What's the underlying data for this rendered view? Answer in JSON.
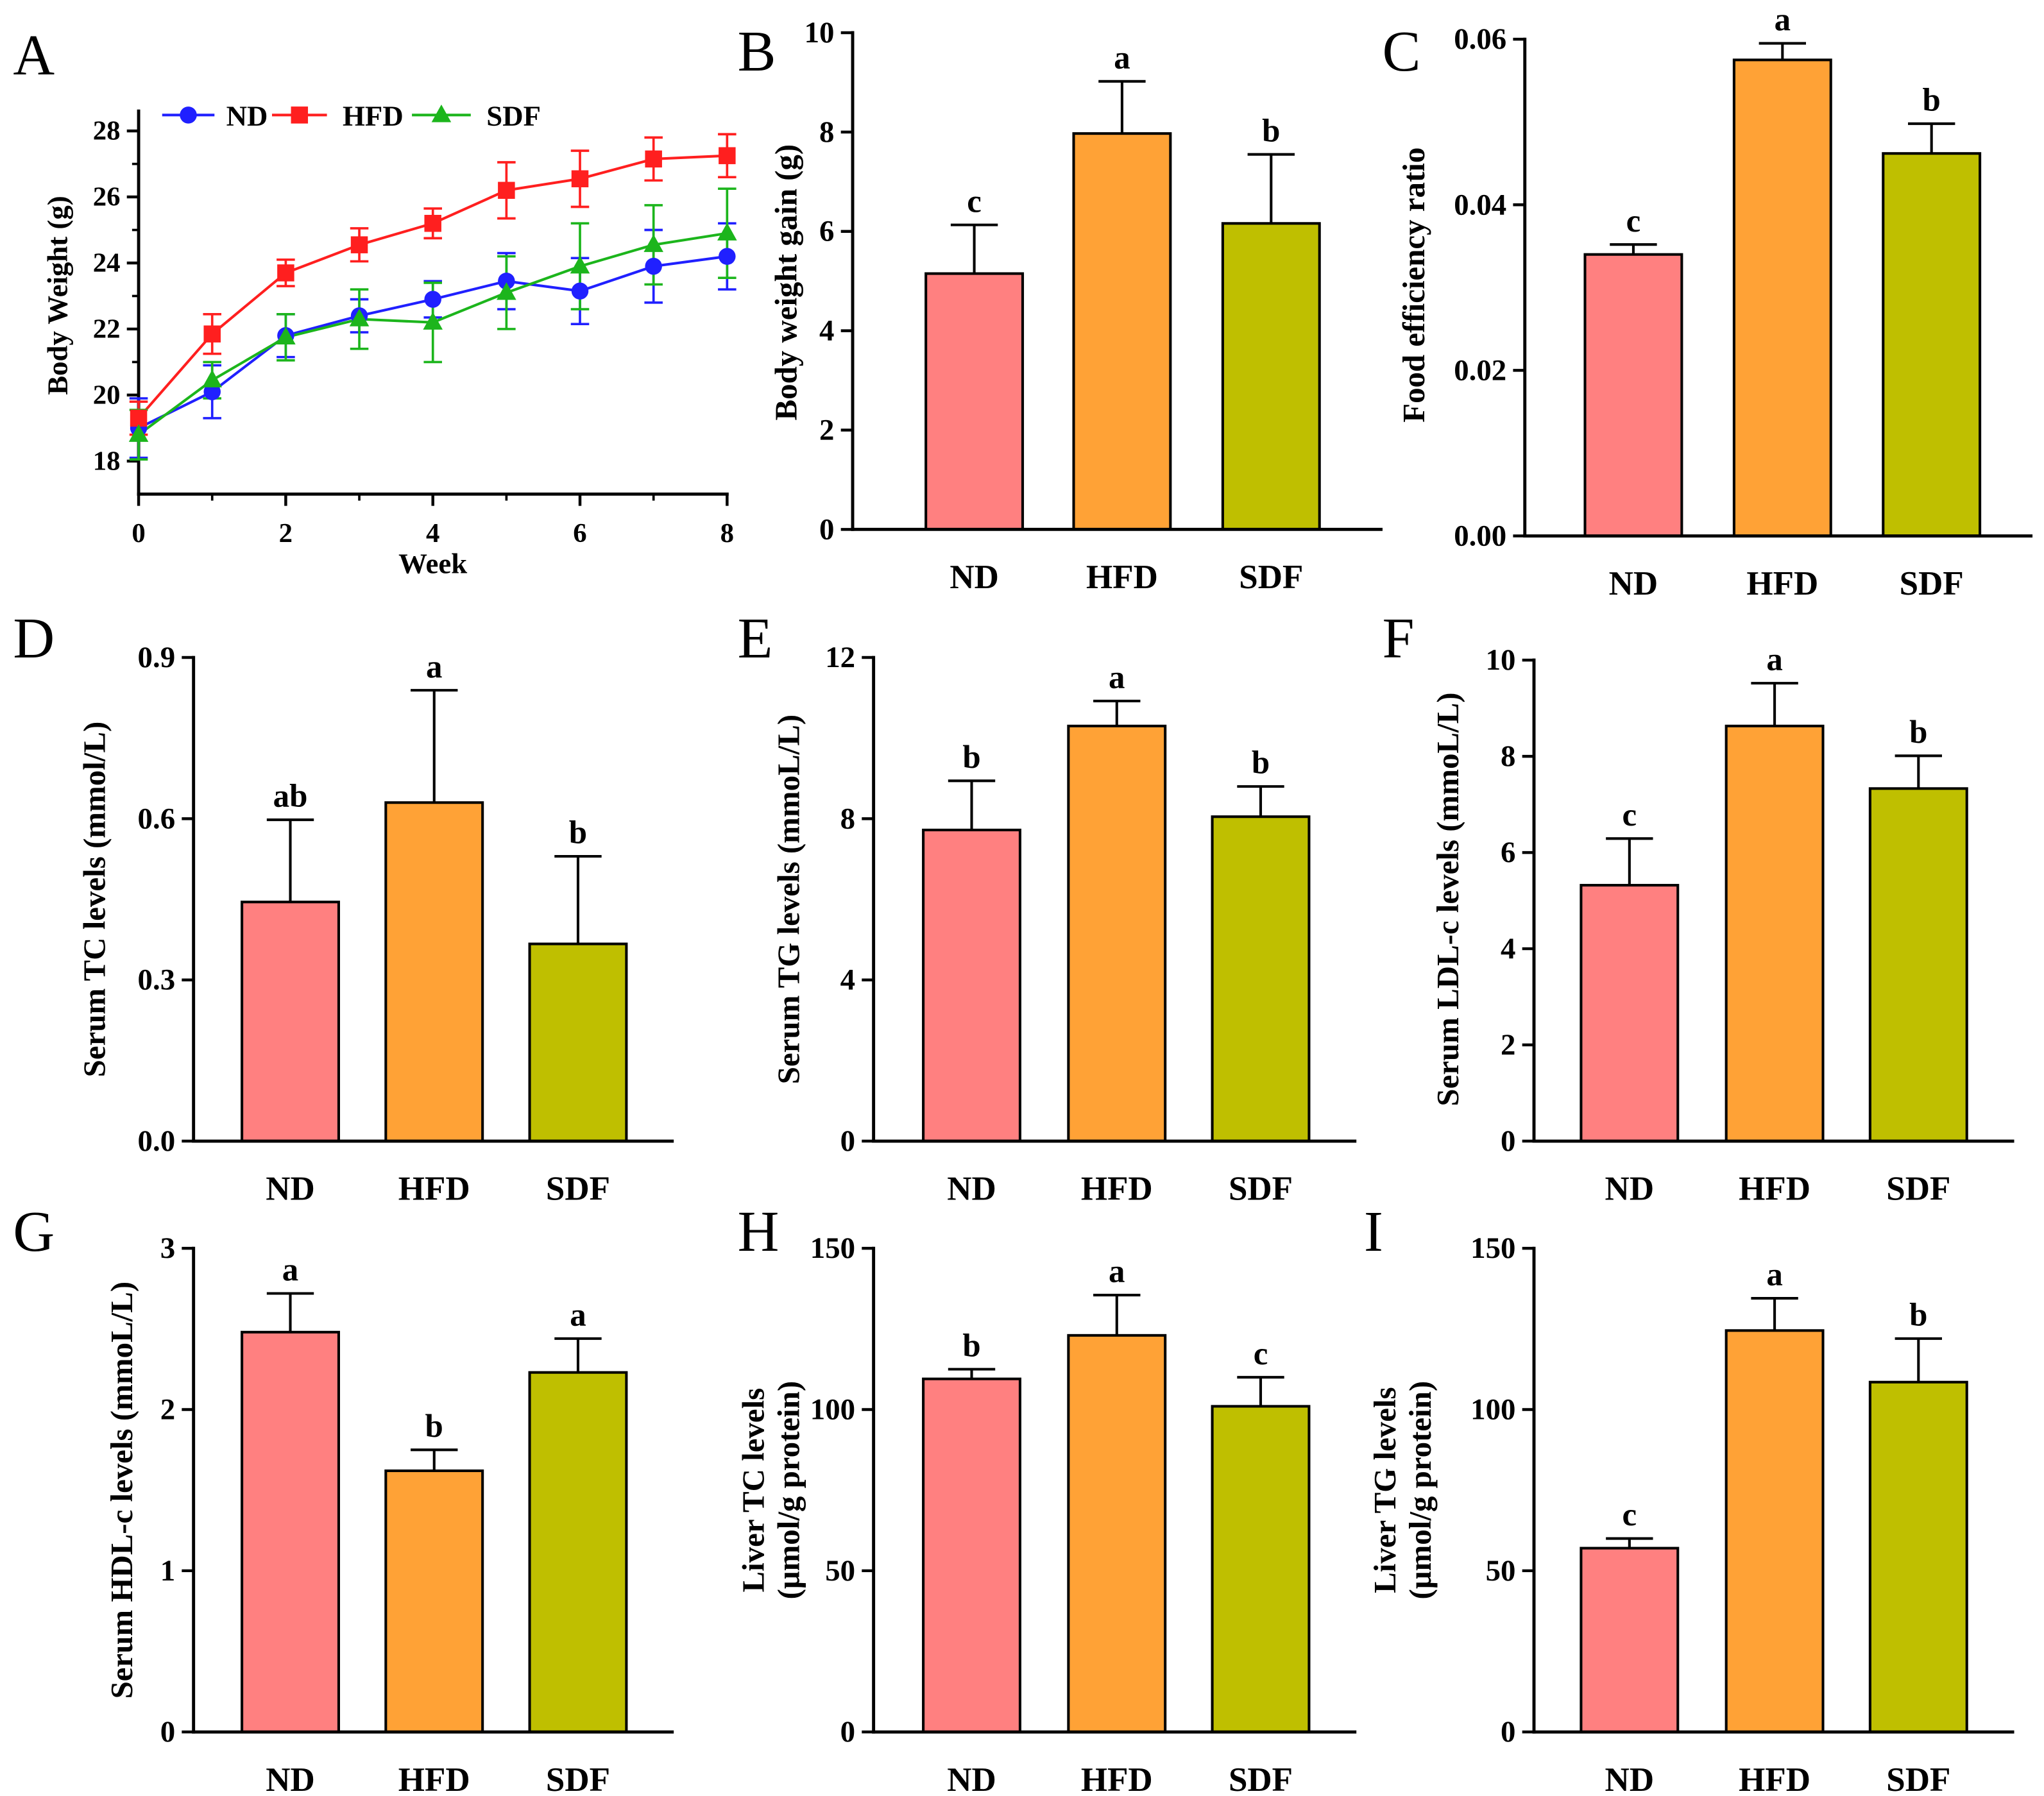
{
  "figure": {
    "series_colors": {
      "ND": "#2020ff",
      "HFD": "#ff1f1f",
      "SDF": "#1cb51c"
    },
    "bar_colors": {
      "ND": "#ff8080",
      "HFD": "#ffa236",
      "SDF": "#bfbf00"
    }
  },
  "chart_data": [
    {
      "panel": "A",
      "type": "line",
      "xlabel": "Week",
      "ylabel": [
        "Body Weight (g)"
      ],
      "x": [
        0,
        1,
        2,
        3,
        4,
        5,
        6,
        7,
        8
      ],
      "xlim": [
        0,
        8
      ],
      "xticks": [
        0,
        2,
        4,
        6,
        8
      ],
      "xtick_labels": [
        "0",
        "2",
        "4",
        "6",
        "8"
      ],
      "ylim": [
        17,
        28.6
      ],
      "yticks": [
        18,
        20,
        22,
        24,
        26,
        28
      ],
      "ytick_labels": [
        "18",
        "20",
        "22",
        "24",
        "26",
        "28"
      ],
      "legend_position": "top-left",
      "series": [
        {
          "name": "ND",
          "marker": "circle",
          "values": [
            19.0,
            20.1,
            21.8,
            22.4,
            22.9,
            23.45,
            23.15,
            23.9,
            24.2
          ],
          "errors": [
            0.9,
            0.8,
            0.65,
            0.5,
            0.55,
            0.85,
            1.0,
            1.1,
            1.0
          ]
        },
        {
          "name": "HFD",
          "marker": "square",
          "values": [
            19.3,
            21.85,
            23.7,
            24.55,
            25.2,
            26.2,
            26.55,
            27.15,
            27.25
          ],
          "errors": [
            0.5,
            0.6,
            0.4,
            0.5,
            0.45,
            0.85,
            0.85,
            0.65,
            0.65
          ]
        },
        {
          "name": "SDF",
          "marker": "triangle",
          "values": [
            18.8,
            20.45,
            21.75,
            22.3,
            22.2,
            23.1,
            23.9,
            24.55,
            24.9
          ],
          "errors": [
            0.75,
            0.55,
            0.7,
            0.9,
            1.2,
            1.1,
            1.3,
            1.2,
            1.35
          ]
        }
      ]
    },
    {
      "panel": "B",
      "type": "bar",
      "ylabel": [
        "Body weight gain (g)"
      ],
      "categories": [
        "ND",
        "HFD",
        "SDF"
      ],
      "values": [
        5.15,
        7.97,
        6.16
      ],
      "errors": [
        0.98,
        1.05,
        1.39
      ],
      "significance": [
        "c",
        "a",
        "b"
      ],
      "ylim": [
        0,
        10
      ],
      "yticks": [
        0,
        2,
        4,
        6,
        8,
        10
      ],
      "ytick_labels": [
        "0",
        "2",
        "4",
        "6",
        "8",
        "10"
      ]
    },
    {
      "panel": "C",
      "type": "bar",
      "ylabel": [
        "Food efficiency ratio"
      ],
      "categories": [
        "ND",
        "HFD",
        "SDF"
      ],
      "values": [
        0.034,
        0.0575,
        0.0462
      ],
      "errors": [
        0.0012,
        0.002,
        0.0036
      ],
      "significance": [
        "c",
        "a",
        "b"
      ],
      "ylim": [
        0,
        0.06
      ],
      "yticks": [
        0,
        0.02,
        0.04,
        0.06
      ],
      "ytick_labels": [
        "0.00",
        "0.02",
        "0.04",
        "0.06"
      ]
    },
    {
      "panel": "D",
      "type": "bar",
      "ylabel": [
        "Serum TC levels (mmol/L)"
      ],
      "categories": [
        "ND",
        "HFD",
        "SDF"
      ],
      "values": [
        0.445,
        0.63,
        0.367
      ],
      "errors": [
        0.153,
        0.209,
        0.163
      ],
      "significance": [
        "ab",
        "a",
        "b"
      ],
      "ylim": [
        0,
        0.9
      ],
      "yticks": [
        0,
        0.3,
        0.6,
        0.9
      ],
      "ytick_labels": [
        "0.0",
        "0.3",
        "0.6",
        "0.9"
      ]
    },
    {
      "panel": "E",
      "type": "bar",
      "ylabel": [
        "Serum TG levels (mmoL/L)"
      ],
      "categories": [
        "ND",
        "HFD",
        "SDF"
      ],
      "values": [
        7.72,
        10.3,
        8.05
      ],
      "errors": [
        1.22,
        0.62,
        0.75
      ],
      "significance": [
        "b",
        "a",
        "b"
      ],
      "ylim": [
        0,
        12
      ],
      "yticks": [
        0,
        4,
        8,
        12
      ],
      "ytick_labels": [
        "0",
        "4",
        "8",
        "12"
      ]
    },
    {
      "panel": "F",
      "type": "bar",
      "ylabel": [
        "Serum LDL-c levels (mmoL/L)"
      ],
      "categories": [
        "ND",
        "HFD",
        "SDF"
      ],
      "values": [
        5.32,
        8.63,
        7.33
      ],
      "errors": [
        0.97,
        0.89,
        0.68
      ],
      "significance": [
        "c",
        "a",
        "b"
      ],
      "ylim": [
        0,
        10
      ],
      "yticks": [
        0,
        2,
        4,
        6,
        8,
        10
      ],
      "ytick_labels": [
        "0",
        "2",
        "4",
        "6",
        "8",
        "10"
      ]
    },
    {
      "panel": "G",
      "type": "bar",
      "ylabel": [
        "Serum HDL-c levels (mmoL/L)"
      ],
      "categories": [
        "ND",
        "HFD",
        "SDF"
      ],
      "values": [
        2.48,
        1.62,
        2.23
      ],
      "errors": [
        0.24,
        0.13,
        0.21
      ],
      "significance": [
        "a",
        "b",
        "a"
      ],
      "ylim": [
        0,
        3
      ],
      "yticks": [
        0,
        1,
        2,
        3
      ],
      "ytick_labels": [
        "0",
        "1",
        "2",
        "3"
      ]
    },
    {
      "panel": "H",
      "type": "bar",
      "ylabel": [
        "Liver TC levels",
        "(μmol/g protein)"
      ],
      "categories": [
        "ND",
        "HFD",
        "SDF"
      ],
      "values": [
        109.5,
        123,
        101
      ],
      "errors": [
        3,
        12.5,
        9
      ],
      "significance": [
        "b",
        "a",
        "c"
      ],
      "ylim": [
        0,
        150
      ],
      "yticks": [
        0,
        50,
        100,
        150
      ],
      "ytick_labels": [
        "0",
        "50",
        "100",
        "150"
      ]
    },
    {
      "panel": "I",
      "type": "bar",
      "ylabel": [
        "Liver TG levels",
        "(μmol/g protein)"
      ],
      "categories": [
        "ND",
        "HFD",
        "SDF"
      ],
      "values": [
        57,
        124.5,
        108.5
      ],
      "errors": [
        3,
        10,
        13.5
      ],
      "significance": [
        "c",
        "a",
        "b"
      ],
      "ylim": [
        0,
        150
      ],
      "yticks": [
        0,
        50,
        100,
        150
      ],
      "ytick_labels": [
        "0",
        "50",
        "100",
        "150"
      ]
    }
  ]
}
